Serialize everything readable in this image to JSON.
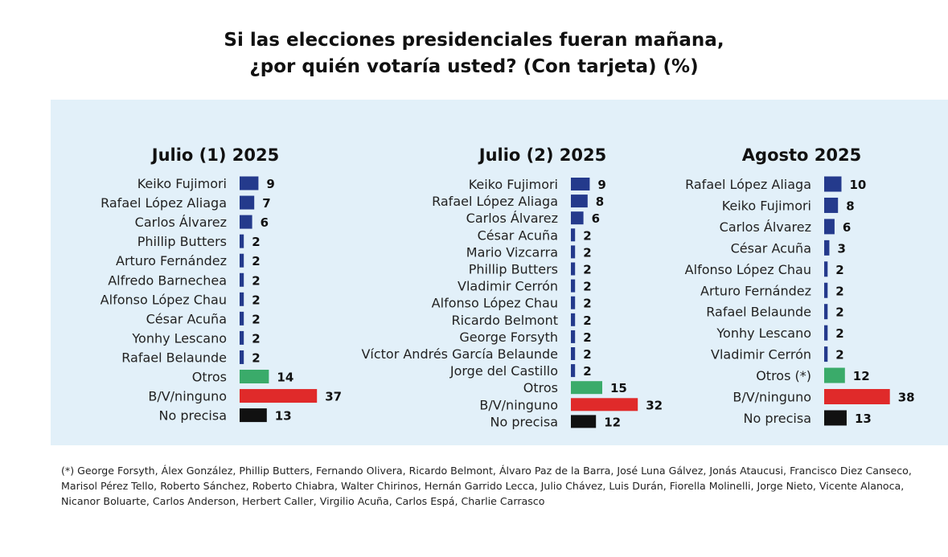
{
  "title_line1": "Si las elecciones presidenciales fueran mañana,",
  "title_line2": "¿por quién votaría usted? (Con tarjeta) (%)",
  "colors": {
    "candidate": "#243a8c",
    "otros": "#3aab6a",
    "ninguno": "#e02a2a",
    "no_precisa": "#111111",
    "panel": "#e2f0f9"
  },
  "chart_data": [
    {
      "type": "bar",
      "title": "Julio (1) 2025",
      "categories": [
        "Keiko Fujimori",
        "Rafael López Aliaga",
        "Carlos Álvarez",
        "Phillip Butters",
        "Arturo Fernández",
        "Alfredo Barnechea",
        "Alfonso López Chau",
        "César Acuña",
        "Yonhy Lescano",
        "Rafael Belaunde",
        "Otros",
        "B/V/ninguno",
        "No precisa"
      ],
      "values": [
        9,
        7,
        6,
        2,
        2,
        2,
        2,
        2,
        2,
        2,
        14,
        37,
        13
      ],
      "kinds": [
        "c",
        "c",
        "c",
        "c",
        "c",
        "c",
        "c",
        "c",
        "c",
        "c",
        "otros",
        "ninguno",
        "nop"
      ],
      "unit": "%"
    },
    {
      "type": "bar",
      "title": "Julio (2) 2025",
      "categories": [
        "Keiko Fujimori",
        "Rafael López Aliaga",
        "Carlos Álvarez",
        "César Acuña",
        "Mario Vizcarra",
        "Phillip Butters",
        "Vladimir Cerrón",
        "Alfonso López Chau",
        "Ricardo Belmont",
        "George Forsyth",
        "Víctor Andrés García Belaunde",
        "Jorge del Castillo",
        "Otros",
        "B/V/ninguno",
        "No precisa"
      ],
      "values": [
        9,
        8,
        6,
        2,
        2,
        2,
        2,
        2,
        2,
        2,
        2,
        2,
        15,
        32,
        12
      ],
      "kinds": [
        "c",
        "c",
        "c",
        "c",
        "c",
        "c",
        "c",
        "c",
        "c",
        "c",
        "c",
        "c",
        "otros",
        "ninguno",
        "nop"
      ],
      "unit": "%"
    },
    {
      "type": "bar",
      "title": "Agosto 2025",
      "categories": [
        "Rafael López Aliaga",
        "Keiko Fujimori",
        "Carlos Álvarez",
        "César Acuña",
        "Alfonso López Chau",
        "Arturo Fernández",
        "Rafael Belaunde",
        "Yonhy Lescano",
        "Vladimir Cerrón",
        "Otros (*)",
        "B/V/ninguno",
        "No precisa"
      ],
      "values": [
        10,
        8,
        6,
        3,
        2,
        2,
        2,
        2,
        2,
        12,
        38,
        13
      ],
      "kinds": [
        "c",
        "c",
        "c",
        "c",
        "c",
        "c",
        "c",
        "c",
        "c",
        "otros",
        "ninguno",
        "nop"
      ],
      "unit": "%"
    }
  ],
  "footnote": "(*) George Forsyth, Álex González, Phillip Butters, Fernando Olivera, Ricardo Belmont, Álvaro Paz de la Barra, José Luna Gálvez, Jonás Ataucusi, Francisco Diez Canseco, Marisol Pérez Tello, Roberto Sánchez, Roberto Chiabra, Walter Chirinos, Hernán Garrido Lecca, Julio Chávez, Luis Durán, Fiorella Molinelli, Jorge Nieto, Vicente Alanoca, Nicanor Boluarte, Carlos Anderson, Herbert Caller, Virgilio Acuña, Carlos Espá, Charlie Carrasco"
}
